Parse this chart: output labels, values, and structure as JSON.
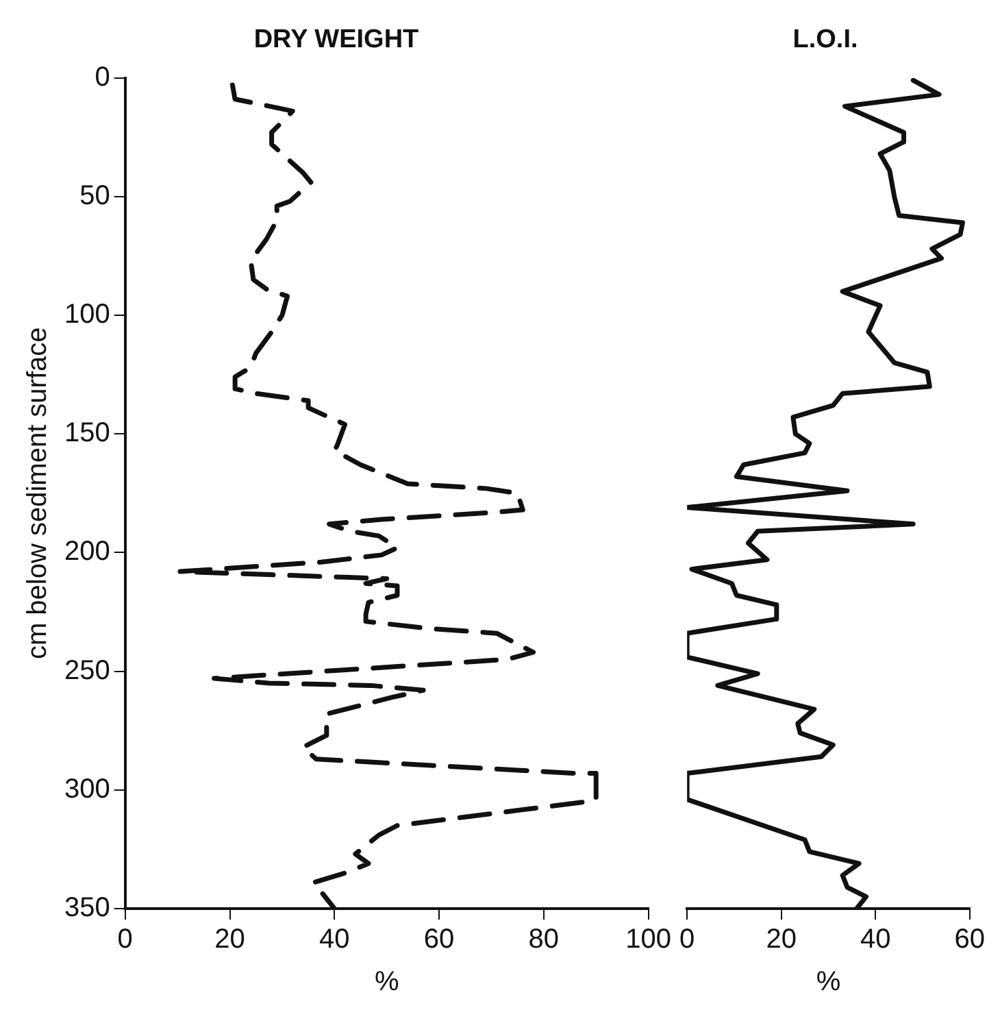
{
  "chart_data": [
    {
      "type": "line",
      "title": "DRY WEIGHT",
      "xlabel": "%",
      "ylabel": "cm below sediment surface",
      "xlim": [
        0,
        100
      ],
      "xticks": [
        0,
        20,
        40,
        60,
        80,
        100
      ],
      "ylim": [
        350,
        0
      ],
      "yticks": [
        0,
        50,
        100,
        150,
        200,
        250,
        300,
        350
      ],
      "grid": false,
      "legend": false,
      "line_style": "dashed",
      "marker": "none",
      "series": [
        {
          "color": "#111111",
          "x": [
            20.5,
            21,
            25.5,
            32,
            28,
            28,
            34,
            35.5,
            31.5,
            29,
            29,
            27,
            24,
            24.5,
            27,
            31,
            30,
            28,
            25,
            24,
            21,
            21,
            25,
            35,
            35,
            39,
            42,
            40.5,
            40,
            45,
            54,
            69,
            75,
            76,
            71,
            49,
            39,
            43,
            48.5,
            52,
            49,
            37.5,
            10.5,
            50,
            46,
            52,
            52,
            46.5,
            46,
            46,
            58,
            71,
            78,
            73,
            17,
            27.5,
            47,
            57,
            51,
            38.5,
            38.5,
            34,
            36.5,
            86,
            90,
            90,
            88,
            52,
            48.5,
            44,
            46.5,
            42,
            36,
            37.5,
            40
          ],
          "values": [
            3,
            9,
            11,
            14,
            23,
            28,
            40,
            44,
            52,
            54,
            60,
            68,
            77,
            85,
            89,
            92,
            100,
            107,
            116,
            122,
            126,
            131,
            133,
            136,
            139,
            143,
            146,
            155,
            157,
            163,
            171,
            173,
            175,
            182,
            183,
            186,
            188,
            191,
            193,
            198,
            201,
            204,
            208,
            211,
            213,
            214,
            218,
            221,
            226,
            229,
            232,
            234,
            242,
            245,
            253,
            255,
            256,
            258,
            261,
            268,
            277,
            282,
            287,
            293,
            293,
            304,
            305,
            315,
            319,
            327,
            331,
            335,
            339,
            343,
            350
          ]
        }
      ]
    },
    {
      "type": "line",
      "title": "L.O.I.",
      "xlabel": "%",
      "xlim": [
        0,
        60
      ],
      "xticks": [
        0,
        20,
        40,
        60
      ],
      "ylim": [
        350,
        0
      ],
      "yticks": [
        0,
        50,
        100,
        150,
        200,
        250,
        300,
        350
      ],
      "tick_labels": "x",
      "grid": false,
      "legend": false,
      "line_style": "solid",
      "marker": "none",
      "series": [
        {
          "color": "#111111",
          "x": [
            48,
            53.5,
            33.5,
            46,
            46,
            41,
            43,
            44,
            45,
            58.5,
            58,
            52,
            54,
            33,
            41,
            38.5,
            44,
            51,
            51.5,
            33,
            31,
            22.5,
            23,
            26,
            25,
            12,
            10.5,
            34,
            0,
            48,
            15,
            13,
            17,
            1,
            9.5,
            10.5,
            19,
            19,
            0,
            0,
            15,
            6.5,
            27,
            23.5,
            24,
            31,
            28.5,
            0,
            0,
            25,
            26,
            36.5,
            33,
            34,
            38,
            36
          ],
          "values": [
            1,
            7,
            12,
            23,
            27,
            32,
            39,
            50,
            58,
            61,
            66,
            72,
            76,
            90,
            96,
            107,
            120,
            124,
            130,
            133,
            138,
            143,
            150,
            154,
            158,
            163,
            168,
            174,
            181,
            188,
            191,
            196,
            203,
            207,
            213,
            218,
            222,
            228,
            234,
            244,
            251,
            256,
            266,
            272,
            276,
            281,
            286,
            293,
            304,
            321,
            326,
            331,
            336,
            341,
            345,
            350
          ]
        }
      ]
    }
  ]
}
